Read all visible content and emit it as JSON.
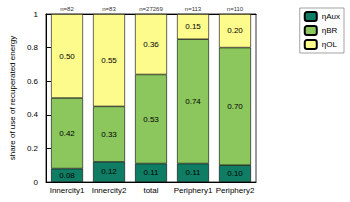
{
  "chart_data": {
    "type": "bar",
    "stacked": true,
    "data_labels": true,
    "grid": false,
    "legend": "upper right",
    "y_label": "share of use of recuperated energy",
    "categories": [
      "Innercity1",
      "Innercity2",
      "total",
      "Periphery1",
      "Periphery2"
    ],
    "annotations": [
      "n=82",
      "n=83",
      "n=27269",
      "n=113",
      "n=110"
    ],
    "ylim": [
      0,
      1
    ],
    "yticks": [
      0,
      0.2,
      0.4,
      0.6,
      0.8,
      1
    ],
    "series": [
      {
        "name": "ηAux",
        "color": "#0e7d63",
        "values": [
          0.08,
          0.12,
          0.11,
          0.11,
          0.1
        ],
        "value_labels": [
          "0.08",
          "0.12",
          "0.11",
          "0.11",
          "0.10"
        ]
      },
      {
        "name": "ηBR",
        "color": "#8cc75e",
        "values": [
          0.42,
          0.33,
          0.53,
          0.74,
          0.7
        ],
        "value_labels": [
          "0.42",
          "0.33",
          "0.53",
          "0.74",
          "0.70"
        ]
      },
      {
        "name": "ηOL",
        "color": "#fdfb8c",
        "values": [
          0.5,
          0.55,
          0.36,
          0.15,
          0.2
        ],
        "value_labels": [
          "0.50",
          "0.55",
          "0.36",
          "0.15",
          "0.20"
        ]
      }
    ]
  }
}
